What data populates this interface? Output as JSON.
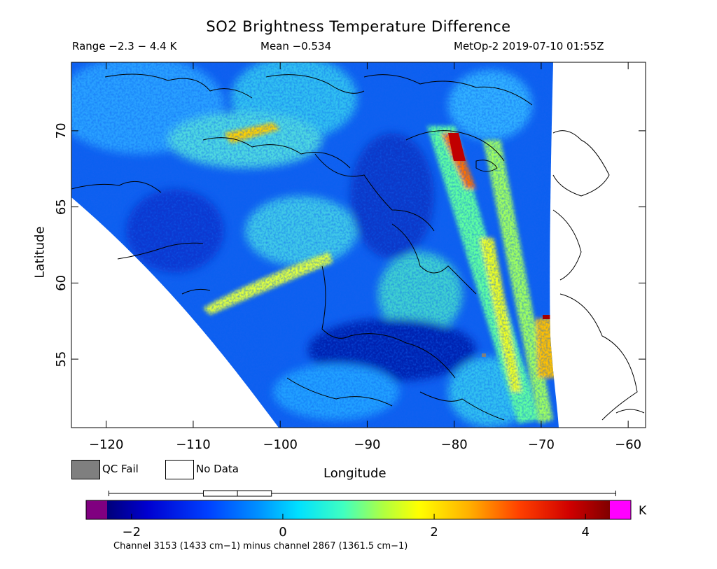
{
  "header": {
    "title": "SO2 Brightness Temperature Difference",
    "range": "Range −2.3 − 4.4 K",
    "mean": "Mean −0.534",
    "satellite_time": "MetOp-2 2019-07-10 01:55Z"
  },
  "map": {
    "xlabel": "Longitude",
    "ylabel": "Latitude",
    "lon_ticks": [
      -120,
      -110,
      -100,
      -90,
      -80,
      -70,
      -60
    ],
    "lon_tick_labels": [
      "−120",
      "−110",
      "−100",
      "−90",
      "−80",
      "−70",
      "−60"
    ],
    "lat_ticks": [
      55,
      60,
      65,
      70
    ],
    "lat_tick_labels": [
      "55",
      "60",
      "65",
      "70"
    ],
    "lon_range": [
      -124,
      -58
    ],
    "lat_range": [
      50.5,
      74.5
    ],
    "hotspots": [
      {
        "lon": -79.0,
        "lat": 68.5,
        "value": 4.2
      },
      {
        "lon": -69.0,
        "lat": 57.5,
        "value": 3.6
      },
      {
        "lon": -103.0,
        "lat": 70.0,
        "value": 3.0
      },
      {
        "lon": -107.0,
        "lat": 59.0,
        "value": 2.6
      },
      {
        "lon": -73.0,
        "lat": 63.0,
        "value": 2.0
      }
    ]
  },
  "legend": {
    "qc_fail": "QC Fail",
    "no_data": "No Data",
    "qc_fail_color": "#7f7f7f",
    "no_data_color": "#ffffff"
  },
  "colorbar": {
    "ticks": [
      -2,
      0,
      2,
      4
    ],
    "tick_labels": [
      "−2",
      "0",
      "2",
      "4"
    ],
    "unit": "K",
    "vmin": -2.6,
    "vmax": 4.6,
    "under_color": "#800080",
    "over_color": "#ff00ff",
    "boxplot": {
      "min": -2.3,
      "q1": -1.05,
      "median": -0.6,
      "q3": -0.15,
      "max": 4.4
    }
  },
  "footnote": "Channel 3153 (1433 cm−1) minus channel 2867 (1361.5 cm−1)"
}
